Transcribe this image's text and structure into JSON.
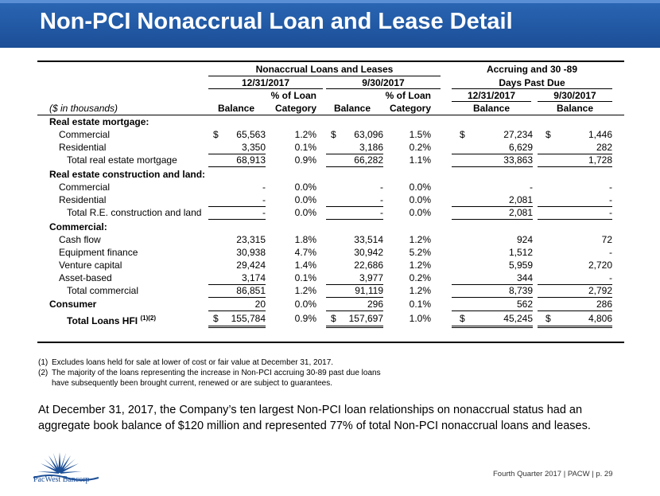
{
  "title": "Non-PCI Nonaccrual Loan and Lease Detail",
  "table": {
    "group_nonaccrual": "Nonaccrual Loans and Leases",
    "group_accruing_line1": "Accruing and 30 -89",
    "group_accruing_line2": "Days Past Due",
    "date_1": "12/31/2017",
    "date_2": "9/30/2017",
    "date_3": "12/31/2017",
    "date_4": "9/30/2017",
    "pct_label_1": "% of Loan",
    "pct_label_2": "% of Loan",
    "units_label": "($ in thousands)",
    "col_balance": "Balance",
    "col_category": "Category",
    "dollar": "$",
    "sections": {
      "re_mortgage": "Real estate mortgage:",
      "re_construction": "Real estate construction and land:",
      "commercial": "Commercial:"
    },
    "rows": [
      {
        "label": "Commercial",
        "v1": "65,563",
        "p1": "1.2%",
        "v2": "63,096",
        "p2": "1.5%",
        "v3": "27,234",
        "v4": "1,446"
      },
      {
        "label": "Residential",
        "v1": "3,350",
        "p1": "0.1%",
        "v2": "3,186",
        "p2": "0.2%",
        "v3": "6,629",
        "v4": "282"
      },
      {
        "label": "Total real estate mortgage",
        "v1": "68,913",
        "p1": "0.9%",
        "v2": "66,282",
        "p2": "1.1%",
        "v3": "33,863",
        "v4": "1,728"
      },
      {
        "label": "Commercial",
        "v1": "-",
        "p1": "0.0%",
        "v2": "-",
        "p2": "0.0%",
        "v3": "-",
        "v4": "-"
      },
      {
        "label": "Residential",
        "v1": "-",
        "p1": "0.0%",
        "v2": "-",
        "p2": "0.0%",
        "v3": "2,081",
        "v4": "-"
      },
      {
        "label": "Total R.E. construction and land",
        "v1": "-",
        "p1": "0.0%",
        "v2": "-",
        "p2": "0.0%",
        "v3": "2,081",
        "v4": "-"
      },
      {
        "label": "Cash flow",
        "v1": "23,315",
        "p1": "1.8%",
        "v2": "33,514",
        "p2": "1.2%",
        "v3": "924",
        "v4": "72"
      },
      {
        "label": "Equipment finance",
        "v1": "30,938",
        "p1": "4.7%",
        "v2": "30,942",
        "p2": "5.2%",
        "v3": "1,512",
        "v4": "-"
      },
      {
        "label": "Venture capital",
        "v1": "29,424",
        "p1": "1.4%",
        "v2": "22,686",
        "p2": "1.2%",
        "v3": "5,959",
        "v4": "2,720"
      },
      {
        "label": "Asset-based",
        "v1": "3,174",
        "p1": "0.1%",
        "v2": "3,977",
        "p2": "0.2%",
        "v3": "344",
        "v4": "-"
      },
      {
        "label": "Total commercial",
        "v1": "86,851",
        "p1": "1.2%",
        "v2": "91,119",
        "p2": "1.2%",
        "v3": "8,739",
        "v4": "2,792"
      },
      {
        "label": "Consumer",
        "v1": "20",
        "p1": "0.0%",
        "v2": "296",
        "p2": "0.1%",
        "v3": "562",
        "v4": "286"
      },
      {
        "label": "Total Loans HFI",
        "sup": "(1)(2)",
        "v1": "155,784",
        "p1": "0.9%",
        "v2": "157,697",
        "p2": "1.0%",
        "v3": "45,245",
        "v4": "4,806"
      }
    ]
  },
  "footnotes": [
    {
      "key": "(1)",
      "text": "Excludes loans held for sale at lower of cost or fair value at December 31, 2017."
    },
    {
      "key": "(2)",
      "text": "The majority of the loans representing the increase in Non-PCI accruing 30-89 past due loans"
    },
    {
      "key": "",
      "text": "have subsequently been brought current, renewed or are subject to guarantees."
    }
  ],
  "summary": "At December 31, 2017, the Company’s ten largest Non-PCI loan relationships on nonaccrual status had an aggregate book balance of $120 million and represented 77% of total Non-PCI nonaccrual loans and leases.",
  "logo_text": "PacWest Bancorp",
  "footer": "Fourth Quarter 2017 | PACW | p. 29",
  "colors": {
    "header_blue": "#1c4e96",
    "logo_blue": "#1c4e96"
  }
}
